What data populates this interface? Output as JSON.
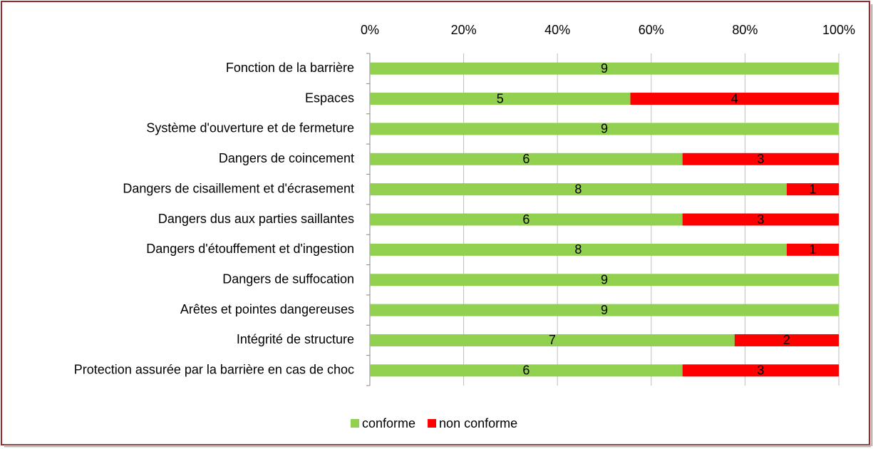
{
  "chart_data": {
    "type": "bar",
    "orientation": "horizontal",
    "stacking": "percent",
    "categories": [
      "Fonction de la barrière",
      "Espaces",
      "Système d'ouverture et de fermeture",
      "Dangers de coincement",
      "Dangers de cisaillement et d'écrasement",
      "Dangers dus aux parties saillantes",
      "Dangers d'étouffement et d'ingestion",
      "Dangers de suffocation",
      "Arêtes et pointes dangereuses",
      "Intégrité de structure",
      "Protection assurée par la barrière en cas de choc"
    ],
    "series": [
      {
        "name": "conforme",
        "color": "#92d050",
        "values": [
          9,
          5,
          9,
          6,
          8,
          6,
          8,
          9,
          9,
          7,
          6
        ]
      },
      {
        "name": "non conforme",
        "color": "#ff0000",
        "values": [
          0,
          4,
          0,
          3,
          1,
          3,
          1,
          0,
          0,
          2,
          3
        ]
      }
    ],
    "xlim": [
      0,
      100
    ],
    "xticks": [
      {
        "value": 0,
        "label": "0%"
      },
      {
        "value": 20,
        "label": "20%"
      },
      {
        "value": 40,
        "label": "40%"
      },
      {
        "value": 60,
        "label": "60%"
      },
      {
        "value": 80,
        "label": "80%"
      },
      {
        "value": 100,
        "label": "100%"
      }
    ],
    "grid": true,
    "legend": "bottom"
  }
}
